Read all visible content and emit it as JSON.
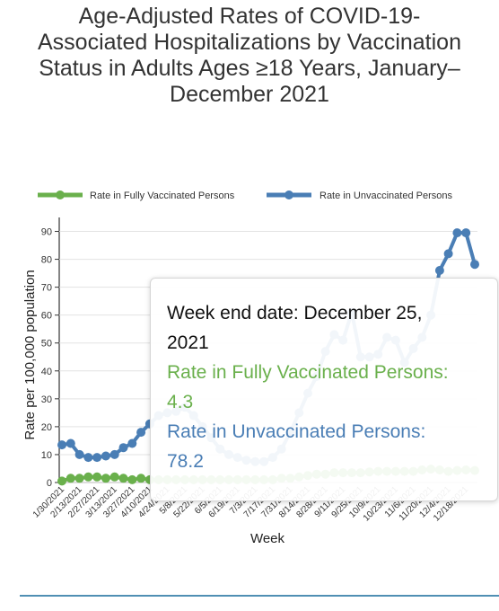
{
  "title_lines": [
    "Age-Adjusted Rates of COVID-19-",
    "Associated Hospitalizations by Vaccination",
    "Status in Adults Ages ≥18 Years, January–",
    "December 2021"
  ],
  "colors": {
    "fully": "#6ab04c",
    "unvaccinated": "#4a7eb5",
    "grid": "#e3e3e3",
    "bottom_rule": "#4f8fb3"
  },
  "tooltip": {
    "date_label": "Week end date: December 25,",
    "date_label_cont": "2021",
    "fully_label": "Rate in Fully Vaccinated Persons:",
    "fully_value": "4.3",
    "unvax_label": "Rate in Unvaccinated Persons:",
    "unvax_value": "78.2"
  },
  "chart_data": {
    "type": "line",
    "xlabel": "Week",
    "ylabel": "Rate per 100,000 population",
    "ylim": [
      0,
      95
    ],
    "yticks": [
      0,
      10,
      20,
      30,
      40,
      50,
      60,
      70,
      80,
      90
    ],
    "grid": true,
    "legend_position": "top",
    "x": [
      "1/30/2021",
      "2/6/2021",
      "2/13/2021",
      "2/20/2021",
      "2/27/2021",
      "3/6/2021",
      "3/13/2021",
      "3/20/2021",
      "3/27/2021",
      "4/3/2021",
      "4/10/2021",
      "4/17/2021",
      "4/24/2021",
      "5/1/2021",
      "5/8/2021",
      "5/15/2021",
      "5/22/2021",
      "5/29/2021",
      "6/5/2021",
      "6/12/2021",
      "6/19/2021",
      "6/26/2021",
      "7/3/2021",
      "7/10/2021",
      "7/17/2021",
      "7/24/2021",
      "7/31/2021",
      "8/7/2021",
      "8/14/2021",
      "8/21/2021",
      "8/28/2021",
      "9/4/2021",
      "9/11/2021",
      "9/18/2021",
      "9/25/2021",
      "10/2/2021",
      "10/9/2021",
      "10/16/2021",
      "10/23/2021",
      "10/30/2021",
      "11/6/2021",
      "11/13/2021",
      "11/20/2021",
      "11/27/2021",
      "12/4/2021",
      "12/11/2021",
      "12/18/2021",
      "12/25/2021"
    ],
    "x_tick_labels": [
      "1/30/2021",
      "2/13/2021",
      "2/27/2021",
      "3/13/2021",
      "3/27/2021",
      "4/10/2021",
      "4/24/2021",
      "5/8/2021",
      "5/22/2021",
      "6/5/2021",
      "6/19/2021",
      "7/3/2021",
      "7/17/2021",
      "7/31/2021",
      "8/14/2021",
      "8/28/2021",
      "9/11/2021",
      "9/25/2021",
      "10/9/2021",
      "10/23/2021",
      "11/6/2021",
      "11/20/2021",
      "12/4/2021",
      "12/18/2021"
    ],
    "series": [
      {
        "name": "Rate in Fully Vaccinated Persons",
        "values": [
          0.5,
          1.5,
          1.5,
          2,
          2,
          1.5,
          2,
          1.5,
          1,
          1.5,
          1,
          1,
          1,
          1,
          1,
          1,
          1,
          1,
          1,
          1,
          1,
          1,
          1,
          1,
          1,
          1.5,
          1.5,
          2,
          2.5,
          3,
          3,
          3.5,
          3.5,
          3.5,
          3.5,
          3.8,
          4,
          4,
          4,
          4,
          4,
          4.5,
          4.8,
          4.5,
          4,
          4.3,
          4.5,
          4.3
        ]
      },
      {
        "name": "Rate in Unvaccinated Persons",
        "values": [
          13.5,
          14,
          10,
          9,
          9,
          9.5,
          10,
          12.5,
          14,
          18,
          21,
          24,
          25,
          25.5,
          27,
          24,
          20,
          16,
          12,
          10,
          9,
          8,
          7.5,
          7.5,
          9,
          12,
          18,
          25,
          32,
          38,
          47,
          53,
          51,
          61,
          45,
          45,
          46,
          52,
          51,
          43,
          48,
          52,
          60,
          76,
          82,
          89.5,
          89.5,
          78.2
        ]
      }
    ]
  }
}
